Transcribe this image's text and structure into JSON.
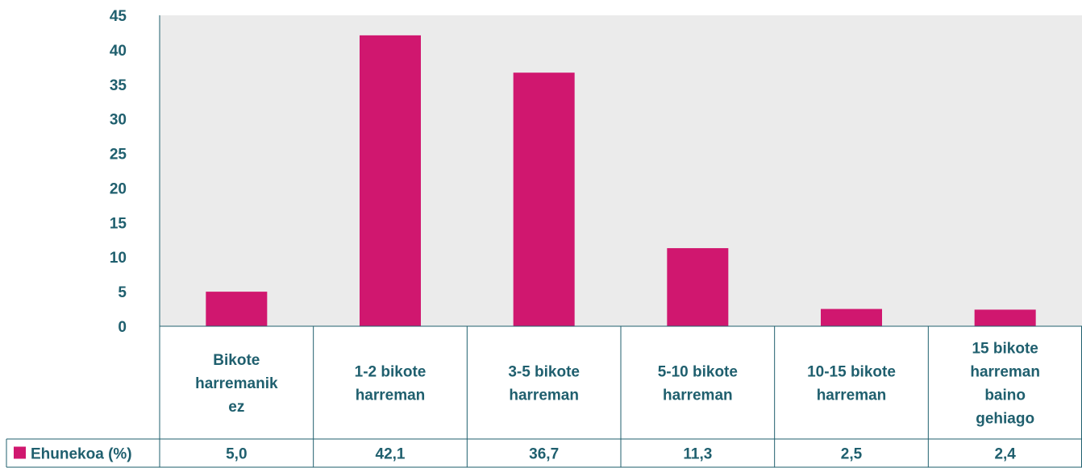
{
  "chart_data": {
    "type": "bar",
    "categories": [
      [
        "Bikote",
        "harremanik",
        "ez"
      ],
      [
        "1-2 bikote",
        "harreman"
      ],
      [
        "3-5 bikote",
        "harreman"
      ],
      [
        "5-10 bikote",
        "harreman"
      ],
      [
        "10-15 bikote",
        "harreman"
      ],
      [
        "15 bikote",
        "harreman",
        "baino",
        "gehiago"
      ]
    ],
    "series": [
      {
        "name": "Ehunekoa (%)",
        "values": [
          5.0,
          42.1,
          36.7,
          11.3,
          2.5,
          2.4
        ],
        "labels": [
          "5,0",
          "42,1",
          "36,7",
          "11,3",
          "2,5",
          "2,4"
        ]
      }
    ],
    "ylim": [
      0,
      45
    ],
    "yticks": [
      0,
      5,
      10,
      15,
      20,
      25,
      30,
      35,
      40,
      45
    ],
    "grid": false,
    "legend": "data-table-left",
    "colors": {
      "bar": "#d0176f",
      "plot_background": "#ebebeb",
      "text": "#1f5f6e",
      "lines": "#1f5f6e"
    }
  }
}
